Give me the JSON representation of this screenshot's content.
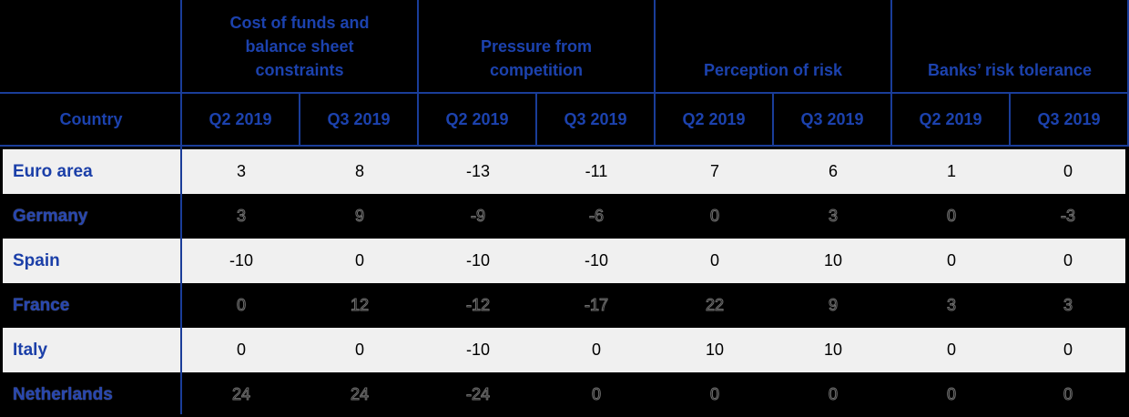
{
  "table": {
    "country_header": "Country",
    "groups": [
      {
        "label": "Cost of funds and balance sheet constraints"
      },
      {
        "label": "Pressure from competition"
      },
      {
        "label": "Perception of risk"
      },
      {
        "label": "Banks’ risk tolerance"
      }
    ],
    "period_headers": [
      "Q2 2019",
      "Q3 2019"
    ],
    "rows": [
      {
        "country": "Euro area",
        "values": [
          "3",
          "8",
          "-13",
          "-11",
          "7",
          "6",
          "1",
          "0"
        ]
      },
      {
        "country": "Germany",
        "values": [
          "3",
          "9",
          "-9",
          "-6",
          "0",
          "3",
          "0",
          "-3"
        ]
      },
      {
        "country": "Spain",
        "values": [
          "-10",
          "0",
          "-10",
          "-10",
          "0",
          "10",
          "0",
          "0"
        ]
      },
      {
        "country": "France",
        "values": [
          "0",
          "12",
          "-12",
          "-17",
          "22",
          "9",
          "3",
          "3"
        ]
      },
      {
        "country": "Italy",
        "values": [
          "0",
          "0",
          "-10",
          "0",
          "10",
          "10",
          "0",
          "0"
        ]
      },
      {
        "country": "Netherlands",
        "values": [
          "24",
          "24",
          "-24",
          "0",
          "0",
          "0",
          "0",
          "0"
        ]
      }
    ]
  },
  "colors": {
    "header_text_blue": "#1C42AE",
    "country_text_blue": "#1B3FA8",
    "border_blue": "#1A3D99",
    "light_row_bg": "#F0F0F0",
    "page_bg": "#000000",
    "value_text": "#000000"
  },
  "chart_data": {
    "type": "table",
    "row_header": "Country",
    "column_groups": [
      "Cost of funds and balance sheet constraints",
      "Pressure from competition",
      "Perception of risk",
      "Banks’ risk tolerance"
    ],
    "sub_columns_per_group": [
      "Q2 2019",
      "Q3 2019"
    ],
    "rows": [
      "Euro area",
      "Germany",
      "Spain",
      "France",
      "Italy",
      "Netherlands"
    ],
    "values": [
      [
        3,
        8,
        -13,
        -11,
        7,
        6,
        1,
        0
      ],
      [
        3,
        9,
        -9,
        -6,
        0,
        3,
        0,
        -3
      ],
      [
        -10,
        0,
        -10,
        -10,
        0,
        10,
        0,
        0
      ],
      [
        0,
        12,
        -12,
        -17,
        22,
        9,
        3,
        3
      ],
      [
        0,
        0,
        -10,
        0,
        10,
        10,
        0,
        0
      ],
      [
        24,
        24,
        -24,
        0,
        0,
        0,
        0,
        0
      ]
    ],
    "layout": {
      "striped_rows": true,
      "header_text_color": "#1C42AE",
      "grid": "partial-blue-rules"
    }
  }
}
